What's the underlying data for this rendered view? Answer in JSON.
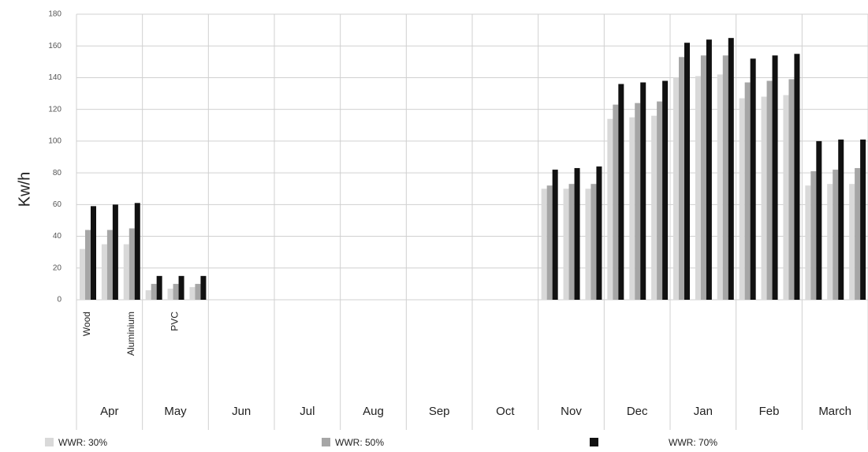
{
  "chart_data": {
    "type": "bar",
    "y_label": "Kw/h",
    "groups": [
      "Apr",
      "May",
      "Jun",
      "Jul",
      "Aug",
      "Sep",
      "Oct",
      "Nov",
      "Dec",
      "Jan",
      "Feb",
      "March"
    ],
    "categories": [
      "Wood",
      null,
      "Aluminium",
      null,
      "PVC",
      null,
      null,
      null,
      null,
      null,
      null,
      null,
      null,
      null,
      null,
      null,
      null,
      null,
      null,
      null,
      null,
      null,
      null,
      null,
      null,
      null,
      null,
      null,
      null,
      null,
      null,
      null,
      null,
      null,
      null,
      null
    ],
    "series": [
      {
        "name": "WWR: 30%",
        "color": "#d9d9d9",
        "values": [
          32,
          35,
          35,
          6,
          7,
          8,
          0,
          0,
          0,
          0,
          0,
          0,
          0,
          0,
          0,
          0,
          0,
          0,
          0,
          0,
          0,
          70,
          70,
          70,
          114,
          115,
          116,
          140,
          141,
          142,
          127,
          128,
          129,
          72,
          73,
          73
        ]
      },
      {
        "name": "WWR: 50%",
        "color": "#a6a6a6",
        "values": [
          44,
          44,
          45,
          10,
          10,
          10,
          0,
          0,
          0,
          0,
          0,
          0,
          0,
          0,
          0,
          0,
          0,
          0,
          0,
          0,
          0,
          72,
          73,
          73,
          123,
          124,
          125,
          153,
          154,
          154,
          137,
          138,
          139,
          81,
          82,
          83
        ]
      },
      {
        "name": "WWR: 70%",
        "color": "#111111",
        "values": [
          59,
          60,
          61,
          15,
          15,
          15,
          0,
          0,
          0,
          0,
          0,
          0,
          0,
          0,
          0,
          0,
          0,
          0,
          0,
          0,
          0,
          82,
          83,
          84,
          136,
          137,
          138,
          162,
          164,
          165,
          152,
          154,
          155,
          100,
          101,
          101
        ]
      }
    ],
    "ylim": [
      0,
      180
    ],
    "yticks": [
      0,
      20,
      40,
      60,
      80,
      100,
      120,
      140,
      160,
      180
    ],
    "grid": true
  }
}
